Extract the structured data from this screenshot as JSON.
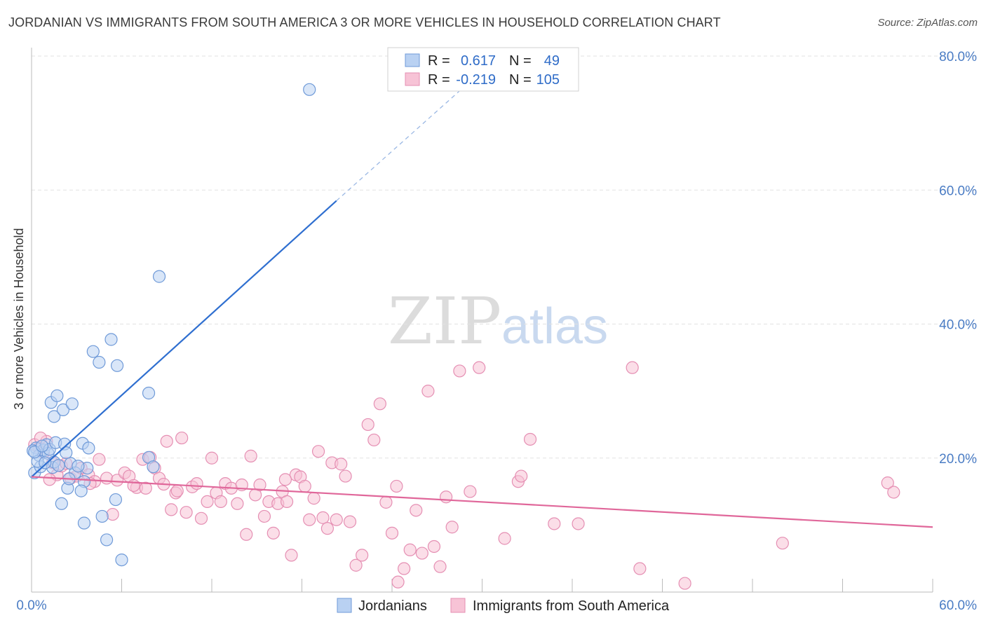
{
  "title": "JORDANIAN VS IMMIGRANTS FROM SOUTH AMERICA 3 OR MORE VEHICLES IN HOUSEHOLD CORRELATION CHART",
  "source": "Source: ZipAtlas.com",
  "watermark": {
    "zip": "ZIP",
    "atlas": "atlas"
  },
  "legend": [
    {
      "r_label": "R =",
      "r_value": "0.617",
      "n_label": "N =",
      "n_value": "49"
    },
    {
      "r_label": "R =",
      "r_value": "-0.219",
      "n_label": "N =",
      "n_value": "105"
    }
  ],
  "colors": {
    "blue": "#2f6fd0",
    "blue_fill": "#b9d1f2",
    "pink": "#e0679a",
    "pink_fill": "#f7c3d6",
    "tick_text": "#4a7cc4",
    "grid": "#e2e2e2"
  },
  "chart_data": {
    "type": "scatter",
    "title": "JORDANIAN VS IMMIGRANTS FROM SOUTH AMERICA 3 OR MORE VEHICLES IN HOUSEHOLD CORRELATION CHART",
    "xlabel": "",
    "ylabel": "3 or more Vehicles in Household",
    "xlim": [
      0,
      60
    ],
    "ylim": [
      0,
      80
    ],
    "x_tick_labels": [
      "0.0%",
      "60.0%"
    ],
    "y_tick_labels": [
      "20.0%",
      "40.0%",
      "60.0%",
      "80.0%"
    ],
    "y_ticks": [
      20,
      40,
      60,
      80
    ],
    "grid": true,
    "series": [
      {
        "name": "Jordanians",
        "color": "#2f6fd0",
        "trend": {
          "x": [
            0,
            20.3
          ],
          "y": [
            17.2,
            58.4
          ],
          "dashed_to": [
            29.0,
            75.8
          ]
        },
        "points": [
          [
            0.2,
            17.8
          ],
          [
            0.3,
            21.5
          ],
          [
            0.5,
            20.4
          ],
          [
            0.6,
            18.7
          ],
          [
            0.8,
            21.2
          ],
          [
            1.0,
            22.0
          ],
          [
            1.1,
            20.7
          ],
          [
            1.2,
            21.3
          ],
          [
            1.4,
            18.6
          ],
          [
            1.5,
            19.4
          ],
          [
            1.6,
            22.3
          ],
          [
            1.3,
            28.3
          ],
          [
            1.5,
            26.2
          ],
          [
            1.7,
            29.3
          ],
          [
            2.1,
            27.2
          ],
          [
            2.7,
            28.1
          ],
          [
            2.6,
            19.2
          ],
          [
            2.2,
            22.1
          ],
          [
            2.3,
            20.8
          ],
          [
            3.4,
            22.2
          ],
          [
            3.8,
            21.5
          ],
          [
            3.7,
            18.5
          ],
          [
            3.5,
            16.5
          ],
          [
            2.4,
            15.5
          ],
          [
            2.0,
            13.2
          ],
          [
            3.3,
            15.1
          ],
          [
            3.5,
            10.3
          ],
          [
            4.7,
            11.3
          ],
          [
            5.0,
            7.8
          ],
          [
            5.6,
            13.8
          ],
          [
            6.0,
            4.8
          ],
          [
            4.1,
            35.9
          ],
          [
            4.5,
            34.3
          ],
          [
            5.3,
            37.7
          ],
          [
            5.7,
            33.8
          ],
          [
            7.8,
            29.7
          ],
          [
            7.8,
            20.1
          ],
          [
            8.1,
            18.7
          ],
          [
            8.5,
            47.1
          ],
          [
            18.5,
            75.0
          ],
          [
            0.1,
            21.1
          ],
          [
            0.4,
            19.5
          ],
          [
            0.9,
            19.3
          ],
          [
            2.9,
            17.8
          ],
          [
            0.2,
            20.9
          ],
          [
            1.8,
            18.9
          ],
          [
            3.1,
            18.8
          ],
          [
            0.7,
            21.8
          ],
          [
            2.5,
            16.9
          ]
        ]
      },
      {
        "name": "Immigrants from South America",
        "color": "#e0679a",
        "trend": {
          "x": [
            0,
            60
          ],
          "y": [
            17.2,
            9.7
          ]
        },
        "points": [
          [
            0.2,
            22.0
          ],
          [
            0.5,
            21.5
          ],
          [
            0.8,
            20.8
          ],
          [
            1.0,
            22.5
          ],
          [
            1.4,
            19.3
          ],
          [
            1.7,
            17.5
          ],
          [
            2.0,
            18.8
          ],
          [
            2.3,
            19.2
          ],
          [
            2.6,
            17.0
          ],
          [
            3.0,
            17.3
          ],
          [
            3.3,
            18.5
          ],
          [
            3.8,
            17.5
          ],
          [
            4.2,
            16.5
          ],
          [
            4.5,
            19.8
          ],
          [
            5.0,
            17.0
          ],
          [
            5.4,
            11.6
          ],
          [
            5.7,
            16.7
          ],
          [
            6.2,
            17.8
          ],
          [
            6.5,
            17.3
          ],
          [
            7.0,
            15.6
          ],
          [
            7.4,
            19.8
          ],
          [
            7.6,
            15.5
          ],
          [
            7.9,
            20.1
          ],
          [
            8.2,
            18.5
          ],
          [
            8.5,
            17.0
          ],
          [
            8.8,
            16.1
          ],
          [
            9.0,
            22.5
          ],
          [
            9.3,
            12.3
          ],
          [
            9.6,
            14.8
          ],
          [
            10.0,
            23.0
          ],
          [
            10.3,
            11.9
          ],
          [
            10.7,
            15.7
          ],
          [
            11.0,
            16.2
          ],
          [
            11.3,
            11.0
          ],
          [
            11.7,
            13.5
          ],
          [
            12.0,
            20.0
          ],
          [
            12.3,
            14.8
          ],
          [
            12.6,
            13.5
          ],
          [
            12.9,
            16.2
          ],
          [
            13.3,
            15.5
          ],
          [
            13.7,
            13.2
          ],
          [
            14.0,
            16.0
          ],
          [
            14.3,
            8.6
          ],
          [
            14.6,
            20.3
          ],
          [
            14.9,
            14.5
          ],
          [
            15.2,
            16.0
          ],
          [
            15.5,
            11.3
          ],
          [
            15.8,
            13.5
          ],
          [
            16.1,
            8.8
          ],
          [
            16.4,
            13.2
          ],
          [
            16.7,
            15.0
          ],
          [
            17.0,
            13.5
          ],
          [
            17.3,
            5.5
          ],
          [
            17.6,
            17.5
          ],
          [
            17.9,
            17.2
          ],
          [
            18.2,
            15.8
          ],
          [
            18.5,
            10.8
          ],
          [
            18.8,
            14.0
          ],
          [
            19.1,
            21.0
          ],
          [
            19.4,
            11.1
          ],
          [
            19.7,
            9.5
          ],
          [
            20.0,
            19.3
          ],
          [
            20.3,
            10.8
          ],
          [
            20.6,
            19.1
          ],
          [
            20.9,
            17.3
          ],
          [
            21.2,
            10.5
          ],
          [
            21.6,
            4.0
          ],
          [
            22.0,
            5.5
          ],
          [
            22.4,
            25.0
          ],
          [
            22.8,
            22.7
          ],
          [
            23.2,
            28.1
          ],
          [
            23.6,
            13.4
          ],
          [
            24.0,
            8.8
          ],
          [
            24.4,
            1.5
          ],
          [
            24.8,
            3.5
          ],
          [
            25.2,
            6.3
          ],
          [
            25.6,
            12.2
          ],
          [
            26.0,
            5.8
          ],
          [
            26.4,
            30.0
          ],
          [
            26.8,
            6.8
          ],
          [
            27.2,
            3.8
          ],
          [
            27.6,
            14.2
          ],
          [
            28.0,
            9.7
          ],
          [
            28.5,
            33.0
          ],
          [
            29.2,
            15.0
          ],
          [
            29.8,
            33.5
          ],
          [
            31.5,
            8.0
          ],
          [
            32.4,
            16.5
          ],
          [
            32.6,
            17.3
          ],
          [
            33.2,
            22.8
          ],
          [
            34.8,
            10.2
          ],
          [
            36.4,
            10.2
          ],
          [
            40.0,
            33.5
          ],
          [
            40.5,
            3.5
          ],
          [
            43.5,
            1.3
          ],
          [
            50.0,
            7.3
          ],
          [
            57.0,
            16.3
          ],
          [
            57.4,
            14.9
          ],
          [
            1.2,
            16.8
          ],
          [
            3.9,
            16.2
          ],
          [
            6.8,
            15.9
          ],
          [
            9.7,
            15.1
          ],
          [
            16.9,
            16.8
          ],
          [
            24.3,
            15.8
          ],
          [
            0.6,
            23.0
          ]
        ]
      }
    ]
  },
  "bottom_legend": [
    "Jordanians",
    "Immigrants from South America"
  ]
}
